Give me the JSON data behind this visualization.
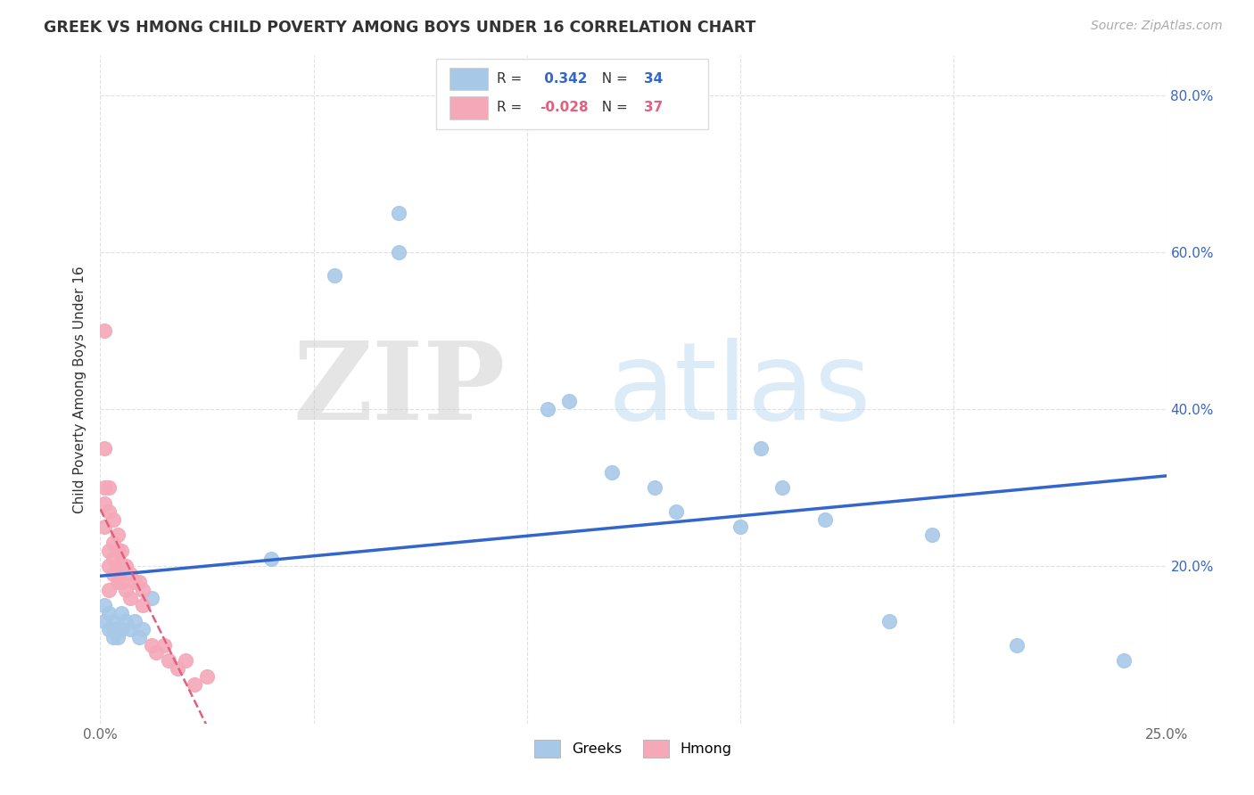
{
  "title": "GREEK VS HMONG CHILD POVERTY AMONG BOYS UNDER 16 CORRELATION CHART",
  "source": "Source: ZipAtlas.com",
  "ylabel": "Child Poverty Among Boys Under 16",
  "xlim": [
    0.0,
    0.25
  ],
  "ylim": [
    0.0,
    0.85
  ],
  "xticks": [
    0.0,
    0.05,
    0.1,
    0.15,
    0.2,
    0.25
  ],
  "yticks": [
    0.0,
    0.2,
    0.4,
    0.6,
    0.8
  ],
  "greek_color": "#a8c8e8",
  "hmong_color": "#f4a8b8",
  "greek_line_color": "#3366cc",
  "hmong_line_color": "#e06080",
  "greek_R": 0.342,
  "greek_N": 34,
  "hmong_R": -0.028,
  "hmong_N": 37,
  "watermark_zip": "ZIP",
  "watermark_atlas": "atlas",
  "background_color": "#ffffff",
  "grid_color": "#cccccc",
  "greek_x": [
    0.001,
    0.001,
    0.002,
    0.002,
    0.003,
    0.003,
    0.003,
    0.004,
    0.004,
    0.005,
    0.005,
    0.006,
    0.007,
    0.008,
    0.009,
    0.01,
    0.012,
    0.04,
    0.055,
    0.07,
    0.07,
    0.105,
    0.11,
    0.12,
    0.13,
    0.135,
    0.15,
    0.155,
    0.16,
    0.17,
    0.185,
    0.195,
    0.215,
    0.24
  ],
  "greek_y": [
    0.15,
    0.13,
    0.14,
    0.12,
    0.13,
    0.12,
    0.11,
    0.12,
    0.11,
    0.14,
    0.12,
    0.13,
    0.12,
    0.13,
    0.11,
    0.12,
    0.16,
    0.21,
    0.57,
    0.6,
    0.65,
    0.4,
    0.41,
    0.32,
    0.3,
    0.27,
    0.25,
    0.35,
    0.3,
    0.26,
    0.13,
    0.24,
    0.1,
    0.08
  ],
  "hmong_x": [
    0.001,
    0.001,
    0.001,
    0.001,
    0.001,
    0.002,
    0.002,
    0.002,
    0.002,
    0.002,
    0.003,
    0.003,
    0.003,
    0.003,
    0.004,
    0.004,
    0.004,
    0.004,
    0.005,
    0.005,
    0.005,
    0.006,
    0.006,
    0.007,
    0.007,
    0.008,
    0.009,
    0.01,
    0.01,
    0.012,
    0.013,
    0.015,
    0.016,
    0.018,
    0.02,
    0.022,
    0.025
  ],
  "hmong_y": [
    0.5,
    0.35,
    0.3,
    0.28,
    0.25,
    0.3,
    0.27,
    0.22,
    0.2,
    0.17,
    0.26,
    0.23,
    0.21,
    0.19,
    0.24,
    0.22,
    0.2,
    0.18,
    0.22,
    0.2,
    0.18,
    0.2,
    0.17,
    0.19,
    0.16,
    0.18,
    0.18,
    0.15,
    0.17,
    0.1,
    0.09,
    0.1,
    0.08,
    0.07,
    0.08,
    0.05,
    0.06
  ]
}
